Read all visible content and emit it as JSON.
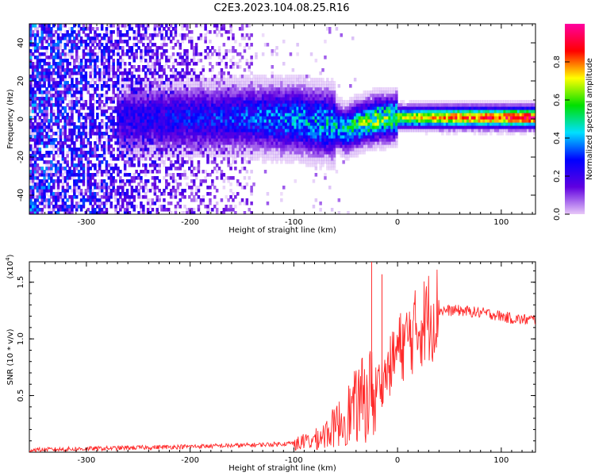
{
  "figure_title": "C2E3.2023.104.08.25.R16",
  "chart_data": [
    {
      "type": "heatmap",
      "title": "C2E3.2023.104.08.25.R16",
      "xlabel": "Height of straight line (km)",
      "ylabel": "Frequency (Hz)",
      "xlim": [
        -355,
        133
      ],
      "ylim": [
        -50,
        50
      ],
      "x_ticks": [
        -300,
        -200,
        -100,
        0,
        100
      ],
      "x_tick_labels": [
        "-300",
        "-200",
        "-100",
        "0",
        "100"
      ],
      "y_ticks": [
        -40,
        -20,
        0,
        20,
        40
      ],
      "y_tick_labels": [
        "-40",
        "-20",
        "0",
        "20",
        "40"
      ],
      "colorbar": {
        "label": "Normalized spectral amplitude",
        "range": [
          0,
          1
        ],
        "ticks": [
          0.0,
          0.2,
          0.4,
          0.6,
          0.8
        ],
        "tick_labels": [
          "0.0",
          "0.2",
          "0.4",
          "0.6",
          "0.8"
        ],
        "colors": [
          "#e8c8f8",
          "#6000e0",
          "#0000ff",
          "#00e0ff",
          "#00e000",
          "#ffff00",
          "#ff0000",
          "#ff00a0"
        ]
      },
      "ridge": {
        "description": "strong narrow band near 0 Hz",
        "x": [
          -270,
          -150,
          -100,
          -60,
          -50,
          -40,
          -20,
          0,
          50,
          133
        ],
        "center_hz": [
          0,
          1,
          0,
          -3,
          -6,
          -3,
          0,
          1,
          1,
          1
        ],
        "intensity": [
          0.25,
          0.35,
          0.45,
          0.5,
          0.55,
          0.6,
          0.7,
          0.65,
          0.8,
          0.9
        ]
      },
      "noise_extent_km": [
        -355,
        -140
      ]
    },
    {
      "type": "line",
      "xlabel": "Height of straight line (km)",
      "ylabel": "SNR (10 * v/v)",
      "y_multiplier_label": "(x10^4)",
      "y_multiplier_base": "(x10",
      "y_multiplier_exp": "4",
      "xlim": [
        -355,
        133
      ],
      "ylim": [
        0,
        1.68
      ],
      "x_ticks": [
        -300,
        -200,
        -100,
        0,
        100
      ],
      "x_tick_labels": [
        "-300",
        "-200",
        "-100",
        "0",
        "100"
      ],
      "y_ticks": [
        0.5,
        1.0,
        1.5
      ],
      "y_tick_labels": [
        "0.5",
        "1.0",
        "1.5"
      ],
      "color": "#ff2a2a",
      "series": [
        {
          "name": "SNR",
          "x": [
            -355,
            -300,
            -250,
            -200,
            -150,
            -120,
            -100,
            -80,
            -70,
            -60,
            -50,
            -40,
            -30,
            -20,
            -10,
            0,
            10,
            20,
            30,
            40,
            50,
            60,
            70,
            80,
            90,
            100,
            110,
            120,
            133
          ],
          "y": [
            0.02,
            0.03,
            0.04,
            0.05,
            0.06,
            0.07,
            0.08,
            0.12,
            0.18,
            0.25,
            0.35,
            0.45,
            0.55,
            0.6,
            0.7,
            0.9,
            1.0,
            1.1,
            1.2,
            1.25,
            1.25,
            1.25,
            1.24,
            1.23,
            1.22,
            1.2,
            1.18,
            1.17,
            1.17
          ],
          "spikes": [
            {
              "x": -25,
              "y": 1.68
            },
            {
              "x": -15,
              "y": 1.57
            }
          ]
        }
      ]
    }
  ]
}
